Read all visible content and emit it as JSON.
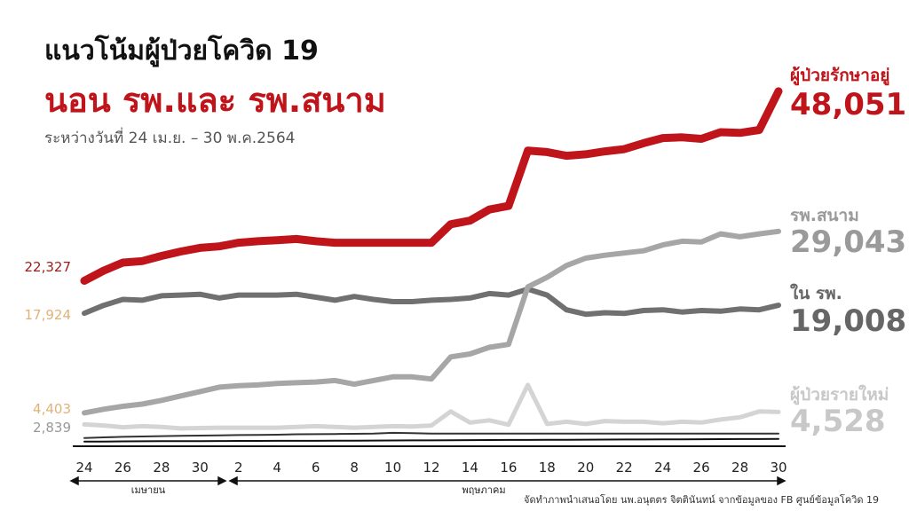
{
  "header": {
    "title": "แนวโน้มผู้ป่วยโควิด 19",
    "subtitle": "นอน รพ.และ รพ.สนาม",
    "period": "ระหว่างวันที่ 24 เม.ย. – 30 พ.ค.2564"
  },
  "footer": {
    "credit": "จัดทำภาพนำเสนอโดย นพ.อนุตตร จิตตินันทน์ จากข้อมูลของ FB ศูนย์ข้อมูลโควิด 19"
  },
  "chart_data": {
    "type": "line",
    "x_tick_labels": [
      "24",
      "26",
      "28",
      "30",
      "2",
      "4",
      "6",
      "8",
      "10",
      "12",
      "14",
      "16",
      "18",
      "20",
      "22",
      "24",
      "26",
      "28",
      "30"
    ],
    "month_labels": [
      "เมษายน",
      "พฤษภาคม"
    ],
    "grid": false,
    "series": [
      {
        "name": "ผู้ป่วยรักษาอยู่",
        "color": "#c0141b",
        "start_label": "22,327",
        "end_label": "48,051",
        "values": [
          22327,
          23700,
          24800,
          25000,
          25700,
          26300,
          26800,
          27000,
          27500,
          27700,
          27850,
          28000,
          27700,
          27500,
          27500,
          27500,
          27500,
          27500,
          27500,
          30000,
          30500,
          32000,
          32500,
          40000,
          39800,
          39300,
          39500,
          39900,
          40200,
          41000,
          41700,
          41800,
          41600,
          42500,
          42400,
          42800,
          48051
        ]
      },
      {
        "name": "รพ.สนาม",
        "color": "#a6a6a6",
        "start_label": "4,403",
        "end_label": "29,043",
        "values": [
          4403,
          4900,
          5300,
          5600,
          6100,
          6700,
          7300,
          7900,
          8100,
          8200,
          8400,
          8500,
          8600,
          8800,
          8300,
          8800,
          9300,
          9300,
          9000,
          12000,
          12400,
          13300,
          13700,
          21500,
          22800,
          24400,
          25400,
          25800,
          26100,
          26400,
          27200,
          27700,
          27600,
          28700,
          28300,
          28700,
          29043
        ]
      },
      {
        "name": "ใน รพ.",
        "color": "#707070",
        "start_label": "17,924",
        "end_label": "19,008",
        "values": [
          17924,
          19000,
          19800,
          19700,
          20300,
          20400,
          20500,
          20000,
          20400,
          20400,
          20400,
          20500,
          20100,
          19700,
          20200,
          19800,
          19500,
          19500,
          19700,
          19800,
          20000,
          20600,
          20400,
          21200,
          20400,
          18400,
          17800,
          18000,
          17900,
          18300,
          18400,
          18100,
          18300,
          18200,
          18500,
          18400,
          19008
        ]
      },
      {
        "name": "ผู้ป่วยรายใหม่",
        "color": "#d4d4d4",
        "start_label": "2,839",
        "end_label": "4,528",
        "values": [
          2839,
          2700,
          2450,
          2600,
          2500,
          2300,
          2350,
          2400,
          2400,
          2400,
          2400,
          2500,
          2600,
          2500,
          2400,
          2500,
          2600,
          2550,
          2700,
          4600,
          3100,
          3400,
          2800,
          8200,
          2900,
          3200,
          2900,
          3300,
          3200,
          3200,
          3000,
          3200,
          3100,
          3500,
          3800,
          4600,
          4528
        ]
      },
      {
        "name": "",
        "color": "#333333",
        "values": [
          1000,
          1080,
          1150,
          1200,
          1250,
          1300,
          1330,
          1360,
          1400,
          1420,
          1450,
          1500,
          1520,
          1540,
          1570,
          1600,
          1700,
          1650,
          1600,
          1600,
          1600,
          1600,
          1600,
          1600,
          1600,
          1600,
          1600,
          1600,
          1600,
          1600,
          1600,
          1600,
          1600,
          1600,
          1600,
          1600,
          1600
        ]
      },
      {
        "name": "",
        "color": "#111111",
        "values": [
          500,
          520,
          540,
          550,
          560,
          570,
          580,
          590,
          600,
          600,
          610,
          620,
          620,
          630,
          640,
          650,
          660,
          670,
          680,
          700,
          710,
          720,
          730,
          740,
          750,
          760,
          770,
          780,
          790,
          800,
          810,
          820,
          830,
          840,
          850,
          860,
          870
        ]
      }
    ]
  }
}
